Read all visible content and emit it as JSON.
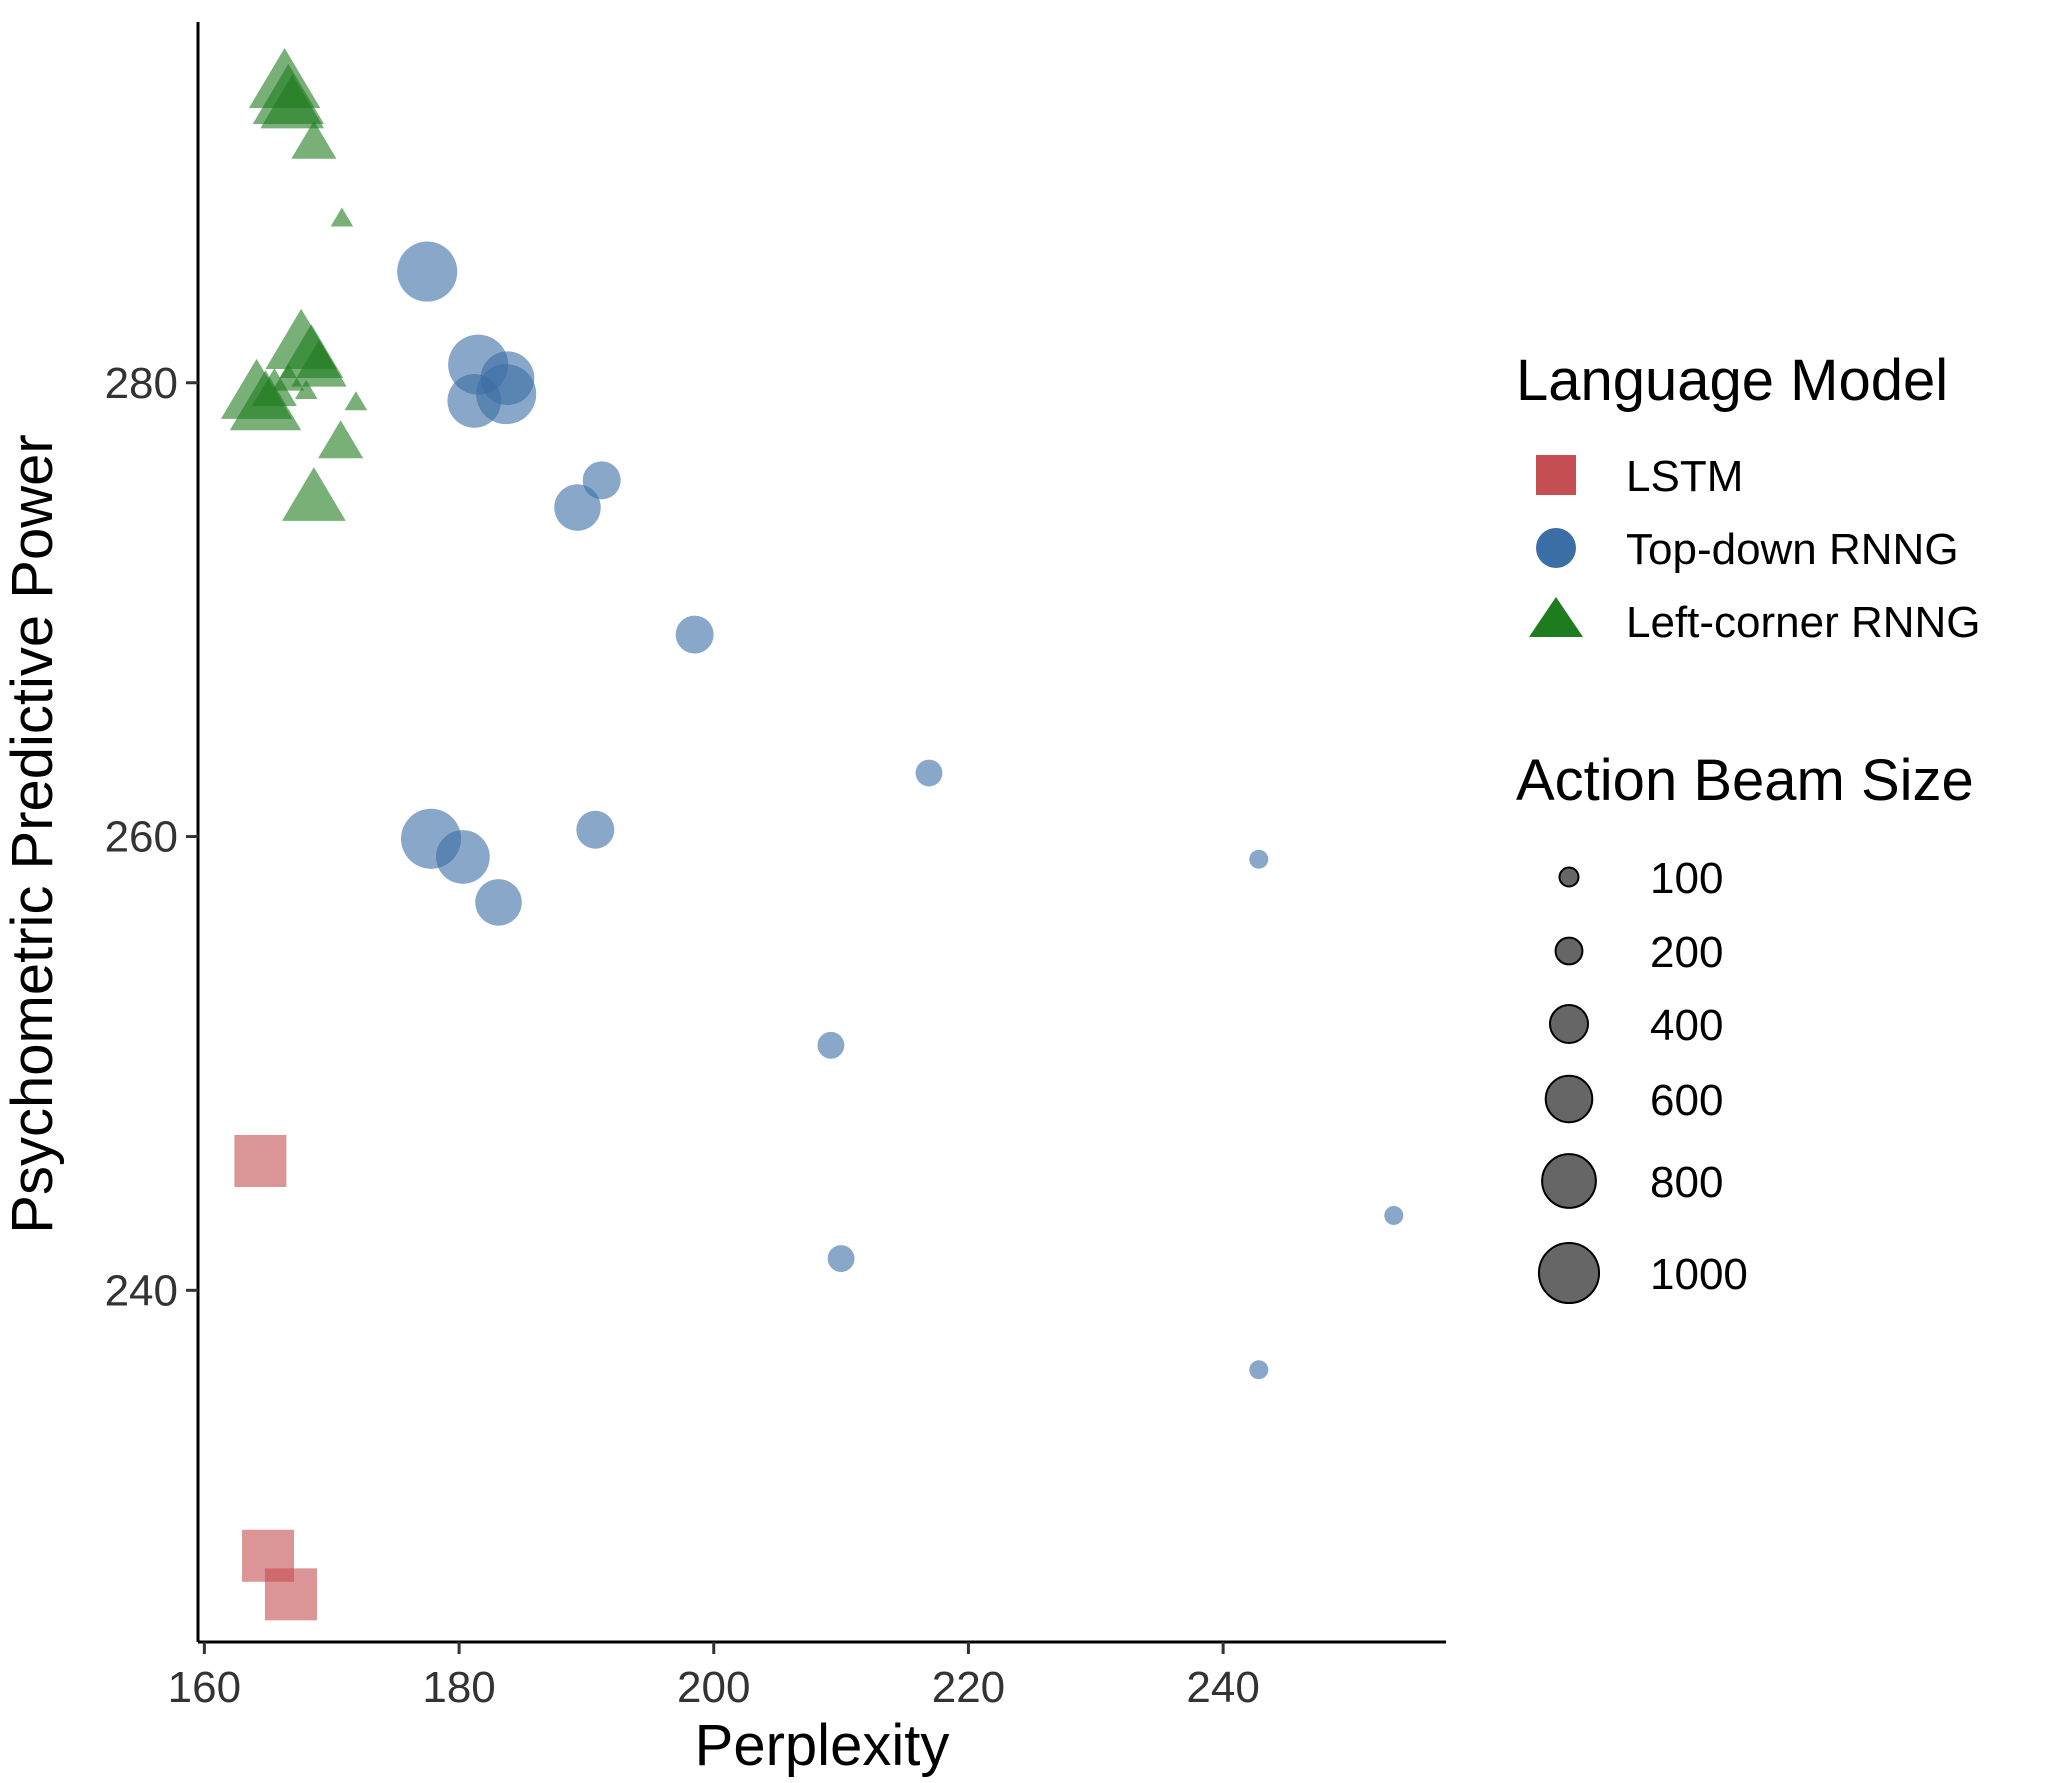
{
  "chart_data": {
    "type": "scatter",
    "xlabel": "Perplexity",
    "ylabel": "Psychometric Predictive Power",
    "xlim": [
      159.5,
      257.5
    ],
    "ylim": [
      224.5,
      295.9
    ],
    "xticks": [
      160,
      180,
      200,
      220,
      240
    ],
    "yticks": [
      240,
      260,
      280
    ],
    "grid": false,
    "legend_placement": "right",
    "colors": {
      "LSTM": "#C44E52",
      "Top-down RNNG": "#3A6EA5",
      "Left-corner RNNG": "#1E7B1E"
    },
    "size_legend": {
      "title": "Action Beam Size",
      "values": [
        100,
        200,
        400,
        600,
        800,
        1000
      ],
      "labels": [
        "100",
        "200",
        "400",
        "600",
        "800",
        "1000"
      ]
    },
    "series": [
      {
        "name": "LSTM",
        "shape": "square",
        "points": [
          {
            "x": 164.4,
            "y": 245.7
          },
          {
            "x": 165.0,
            "y": 228.3
          },
          {
            "x": 166.8,
            "y": 226.6
          }
        ]
      },
      {
        "name": "Top-down RNNG",
        "shape": "circle",
        "points": [
          {
            "x": 177.5,
            "y": 284.9,
            "beam": 1000
          },
          {
            "x": 181.5,
            "y": 280.8,
            "beam": 1000
          },
          {
            "x": 183.8,
            "y": 280.2,
            "beam": 800
          },
          {
            "x": 181.2,
            "y": 279.2,
            "beam": 800
          },
          {
            "x": 183.7,
            "y": 279.5,
            "beam": 1000
          },
          {
            "x": 191.2,
            "y": 275.7,
            "beam": 400
          },
          {
            "x": 189.3,
            "y": 274.5,
            "beam": 600
          },
          {
            "x": 198.5,
            "y": 268.9,
            "beam": 400
          },
          {
            "x": 216.9,
            "y": 262.8,
            "beam": 200
          },
          {
            "x": 242.8,
            "y": 259.0,
            "beam": 100
          },
          {
            "x": 177.8,
            "y": 259.9,
            "beam": 1000
          },
          {
            "x": 180.3,
            "y": 259.1,
            "beam": 800
          },
          {
            "x": 190.7,
            "y": 260.3,
            "beam": 400
          },
          {
            "x": 183.1,
            "y": 257.1,
            "beam": 600
          },
          {
            "x": 209.2,
            "y": 250.8,
            "beam": 200
          },
          {
            "x": 210.0,
            "y": 241.4,
            "beam": 200
          },
          {
            "x": 253.4,
            "y": 243.3,
            "beam": 100
          },
          {
            "x": 242.8,
            "y": 236.5,
            "beam": 100
          }
        ]
      },
      {
        "name": "Left-corner RNNG",
        "shape": "triangle",
        "points": [
          {
            "x": 166.3,
            "y": 293.1,
            "beam": 1000
          },
          {
            "x": 166.6,
            "y": 292.4,
            "beam": 1000
          },
          {
            "x": 166.9,
            "y": 292.1,
            "beam": 800
          },
          {
            "x": 168.6,
            "y": 290.5,
            "beam": 400
          },
          {
            "x": 170.8,
            "y": 287.2,
            "beam": 100
          },
          {
            "x": 167.6,
            "y": 281.6,
            "beam": 1000
          },
          {
            "x": 168.4,
            "y": 281.1,
            "beam": 800
          },
          {
            "x": 169.0,
            "y": 280.6,
            "beam": 600
          },
          {
            "x": 166.6,
            "y": 280.1,
            "beam": 200
          },
          {
            "x": 168.0,
            "y": 279.6,
            "beam": 100
          },
          {
            "x": 165.5,
            "y": 279.6,
            "beam": 400
          },
          {
            "x": 164.1,
            "y": 279.4,
            "beam": 1000
          },
          {
            "x": 164.8,
            "y": 278.9,
            "beam": 1000
          },
          {
            "x": 171.9,
            "y": 279.1,
            "beam": 100
          },
          {
            "x": 170.7,
            "y": 277.3,
            "beam": 400
          },
          {
            "x": 168.6,
            "y": 274.8,
            "beam": 800
          }
        ]
      }
    ]
  }
}
